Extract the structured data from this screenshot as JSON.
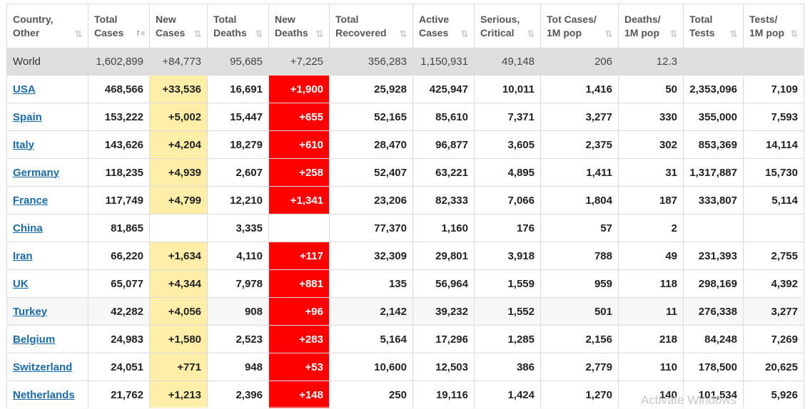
{
  "columns": [
    {
      "line1": "Country,",
      "line2": "Other",
      "active": false
    },
    {
      "line1": "Total",
      "line2": "Cases",
      "active": true
    },
    {
      "line1": "New",
      "line2": "Cases",
      "active": false
    },
    {
      "line1": "Total",
      "line2": "Deaths",
      "active": false
    },
    {
      "line1": "New",
      "line2": "Deaths",
      "active": false
    },
    {
      "line1": "Total",
      "line2": "Recovered",
      "active": false
    },
    {
      "line1": "Active",
      "line2": "Cases",
      "active": false
    },
    {
      "line1": "Serious,",
      "line2": "Critical",
      "active": false
    },
    {
      "line1": "Tot Cases/",
      "line2": "1M pop",
      "active": false
    },
    {
      "line1": "Deaths/",
      "line2": "1M pop",
      "active": false
    },
    {
      "line1": "Total",
      "line2": "Tests",
      "active": false
    },
    {
      "line1": "Tests/",
      "line2": "1M pop",
      "active": false
    }
  ],
  "world": [
    "World",
    "1,602,899",
    "+84,773",
    "95,685",
    "+7,225",
    "356,283",
    "1,150,931",
    "49,148",
    "206",
    "12.3",
    "",
    ""
  ],
  "rows": [
    [
      "USA",
      "468,566",
      "+33,536",
      "16,691",
      "+1,900",
      "25,928",
      "425,947",
      "10,011",
      "1,416",
      "50",
      "2,353,096",
      "7,109"
    ],
    [
      "Spain",
      "153,222",
      "+5,002",
      "15,447",
      "+655",
      "52,165",
      "85,610",
      "7,371",
      "3,277",
      "330",
      "355,000",
      "7,593"
    ],
    [
      "Italy",
      "143,626",
      "+4,204",
      "18,279",
      "+610",
      "28,470",
      "96,877",
      "3,605",
      "2,375",
      "302",
      "853,369",
      "14,114"
    ],
    [
      "Germany",
      "118,235",
      "+4,939",
      "2,607",
      "+258",
      "52,407",
      "63,221",
      "4,895",
      "1,411",
      "31",
      "1,317,887",
      "15,730"
    ],
    [
      "France",
      "117,749",
      "+4,799",
      "12,210",
      "+1,341",
      "23,206",
      "82,333",
      "7,066",
      "1,804",
      "187",
      "333,807",
      "5,114"
    ],
    [
      "China",
      "81,865",
      "",
      "3,335",
      "",
      "77,370",
      "1,160",
      "176",
      "57",
      "2",
      "",
      ""
    ],
    [
      "Iran",
      "66,220",
      "+1,634",
      "4,110",
      "+117",
      "32,309",
      "29,801",
      "3,918",
      "788",
      "49",
      "231,393",
      "2,755"
    ],
    [
      "UK",
      "65,077",
      "+4,344",
      "7,978",
      "+881",
      "135",
      "56,964",
      "1,559",
      "959",
      "118",
      "298,169",
      "4,392"
    ],
    [
      "Turkey",
      "42,282",
      "+4,056",
      "908",
      "+96",
      "2,142",
      "39,232",
      "1,552",
      "501",
      "11",
      "276,338",
      "3,277"
    ],
    [
      "Belgium",
      "24,983",
      "+1,580",
      "2,523",
      "+283",
      "5,164",
      "17,296",
      "1,285",
      "2,156",
      "218",
      "84,248",
      "7,269"
    ],
    [
      "Switzerland",
      "24,051",
      "+771",
      "948",
      "+53",
      "10,600",
      "12,503",
      "386",
      "2,779",
      "110",
      "178,500",
      "20,625"
    ],
    [
      "Netherlands",
      "21,762",
      "+1,213",
      "2,396",
      "+148",
      "250",
      "19,116",
      "1,424",
      "1,270",
      "140",
      "101,534",
      "5,926"
    ]
  ],
  "alt_rows": [
    8
  ],
  "colors": {
    "new_cases_bg": "#ffeea8",
    "new_deaths_bg": "#ff0000",
    "world_bg": "#dfdfdf",
    "link": "#1b6aa6"
  },
  "icons": {
    "sort": "sort-arrows-icon",
    "sort_active": "sort-desc-icon"
  },
  "watermark": "Activate Windows"
}
